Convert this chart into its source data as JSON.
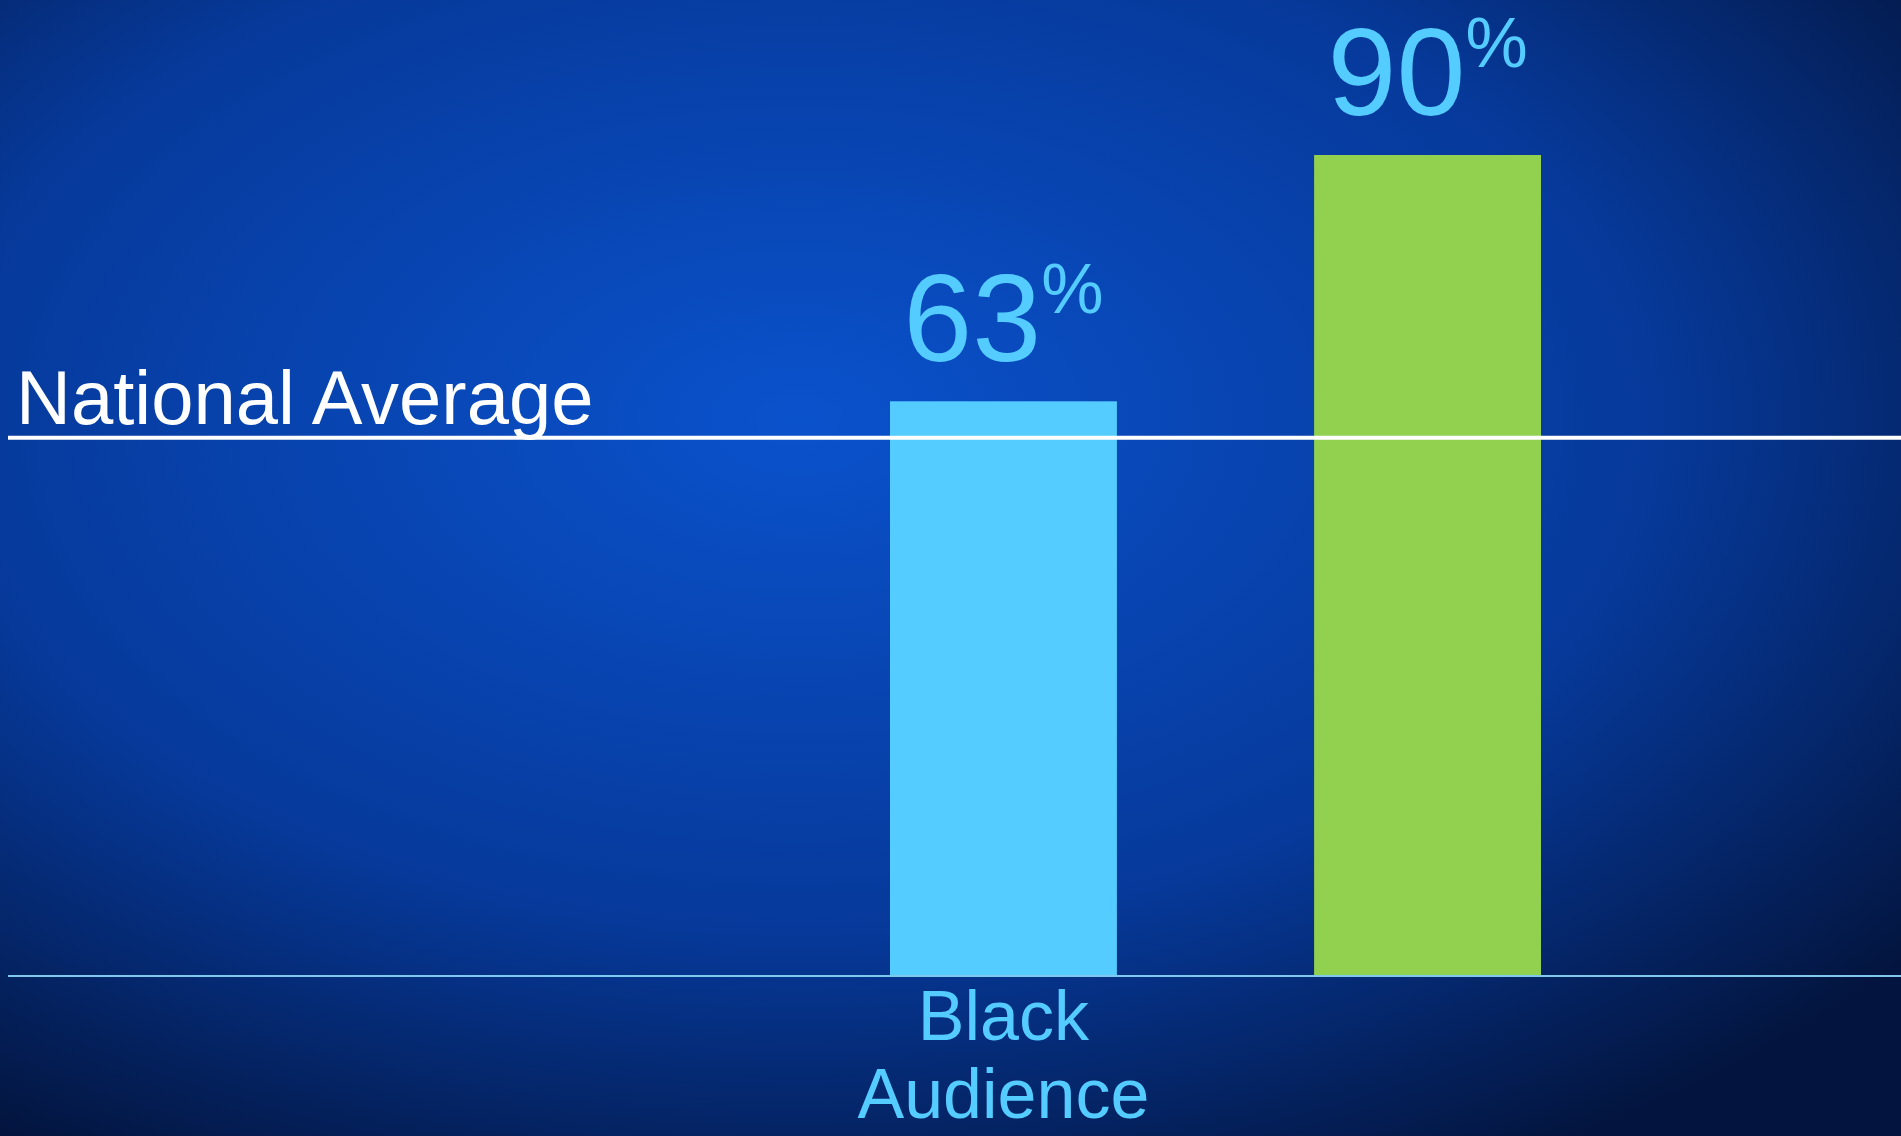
{
  "chart_data": {
    "type": "bar",
    "categories": [
      "Black Audience",
      null
    ],
    "values": [
      63,
      90
    ],
    "colors": [
      "#55ccff",
      "#92d050"
    ],
    "value_labels": [
      "63$^{%}$",
      "90$^{%}$"
    ],
    "ref_lines": [
      {
        "axis": "y",
        "value": 59,
        "label": "National Average",
        "color": "#ffffff"
      }
    ]
  }
}
